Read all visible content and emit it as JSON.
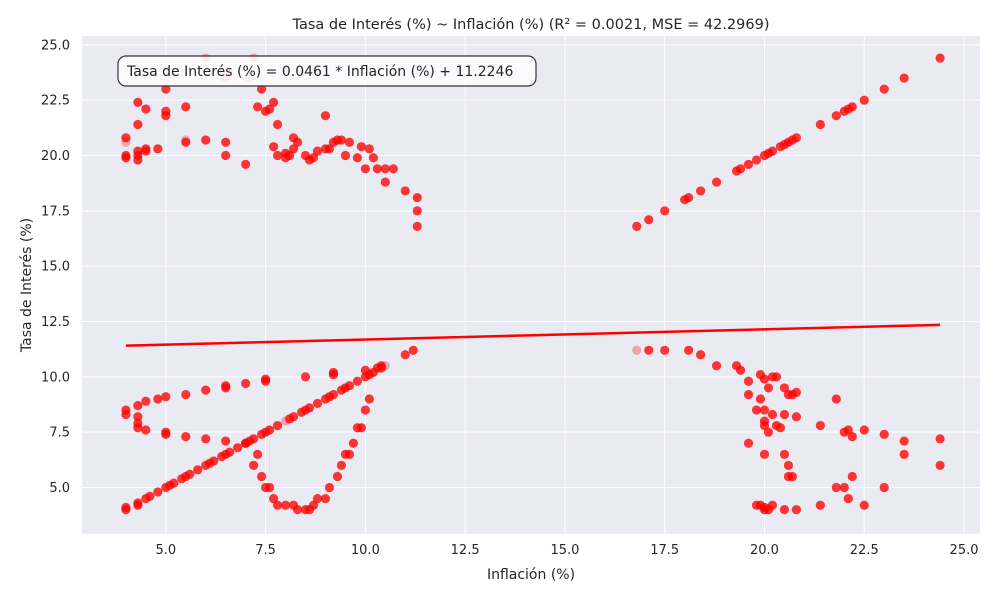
{
  "chart_data": {
    "type": "scatter",
    "title": "Tasa de Interés (%) ~ Inflación (%) (R² = 0.0021, MSE = 42.2969)",
    "xlabel": "Inflación (%)",
    "ylabel": "Tasa de Interés (%)",
    "xlim": [
      2.9,
      25.4
    ],
    "ylim": [
      2.9,
      25.4
    ],
    "xticks": [
      5.0,
      7.5,
      10.0,
      12.5,
      15.0,
      17.5,
      20.0,
      22.5,
      25.0
    ],
    "yticks": [
      5.0,
      7.5,
      10.0,
      12.5,
      15.0,
      17.5,
      20.0,
      22.5,
      25.0
    ],
    "xtick_labels": [
      "5.0",
      "7.5",
      "10.0",
      "12.5",
      "15.0",
      "17.5",
      "20.0",
      "22.5",
      "25.0"
    ],
    "ytick_labels": [
      "5.0",
      "7.5",
      "10.0",
      "12.5",
      "15.0",
      "17.5",
      "20.0",
      "22.5",
      "25.0"
    ],
    "grid": true,
    "regression": {
      "equation": "Tasa de Interés (%) = 0.0461 * Inflación (%) + 11.2246",
      "slope": 0.0461,
      "intercept": 11.2246,
      "x_range": [
        4.0,
        24.4
      ],
      "color": "#ff0000"
    },
    "point_color": "#ff0000",
    "background_color": "#eaeaf2",
    "points": [
      [
        4.0,
        4.0
      ],
      [
        4.0,
        4.1
      ],
      [
        4.3,
        4.2
      ],
      [
        4.3,
        4.3
      ],
      [
        4.5,
        4.5
      ],
      [
        4.6,
        4.6
      ],
      [
        4.8,
        4.8
      ],
      [
        5.0,
        5.0
      ],
      [
        5.1,
        5.1
      ],
      [
        5.2,
        5.2
      ],
      [
        5.4,
        5.4
      ],
      [
        5.5,
        5.5
      ],
      [
        5.6,
        5.6
      ],
      [
        5.8,
        5.8
      ],
      [
        6.0,
        6.0
      ],
      [
        6.1,
        6.1
      ],
      [
        6.2,
        6.2
      ],
      [
        6.4,
        6.4
      ],
      [
        6.5,
        6.5
      ],
      [
        6.6,
        6.6
      ],
      [
        6.8,
        6.8
      ],
      [
        7.0,
        7.0
      ],
      [
        7.1,
        7.1
      ],
      [
        7.2,
        7.2
      ],
      [
        7.4,
        7.4
      ],
      [
        7.5,
        7.5
      ],
      [
        7.6,
        7.6
      ],
      [
        7.8,
        7.8
      ],
      [
        8.0,
        8.0
      ],
      [
        8.1,
        8.1
      ],
      [
        8.2,
        8.2
      ],
      [
        8.4,
        8.4
      ],
      [
        8.5,
        8.5
      ],
      [
        8.6,
        8.6
      ],
      [
        8.8,
        8.8
      ],
      [
        9.0,
        9.0
      ],
      [
        9.1,
        9.1
      ],
      [
        9.2,
        9.2
      ],
      [
        9.4,
        9.4
      ],
      [
        9.5,
        9.5
      ],
      [
        9.6,
        9.6
      ],
      [
        9.8,
        9.8
      ],
      [
        10.0,
        10.0
      ],
      [
        10.1,
        10.1
      ],
      [
        10.2,
        10.2
      ],
      [
        10.4,
        10.4
      ],
      [
        10.5,
        10.5
      ],
      [
        11.0,
        11.0
      ],
      [
        11.2,
        11.2
      ],
      [
        4.0,
        8.3
      ],
      [
        4.0,
        8.5
      ],
      [
        4.3,
        8.7
      ],
      [
        4.5,
        8.9
      ],
      [
        4.8,
        9.0
      ],
      [
        5.0,
        9.1
      ],
      [
        5.5,
        9.2
      ],
      [
        6.0,
        9.4
      ],
      [
        6.5,
        9.5
      ],
      [
        6.5,
        9.6
      ],
      [
        7.0,
        9.7
      ],
      [
        7.5,
        9.8
      ],
      [
        7.5,
        9.9
      ],
      [
        8.5,
        10.0
      ],
      [
        9.2,
        10.1
      ],
      [
        9.2,
        10.2
      ],
      [
        10.0,
        10.3
      ],
      [
        10.3,
        10.4
      ],
      [
        10.4,
        10.5
      ],
      [
        4.3,
        7.7
      ],
      [
        4.3,
        7.9
      ],
      [
        4.3,
        8.2
      ],
      [
        4.5,
        7.6
      ],
      [
        5.0,
        7.5
      ],
      [
        5.0,
        7.4
      ],
      [
        5.5,
        7.3
      ],
      [
        6.0,
        7.2
      ],
      [
        6.5,
        7.1
      ],
      [
        7.0,
        7.0
      ],
      [
        7.3,
        6.5
      ],
      [
        7.2,
        6.0
      ],
      [
        7.4,
        5.5
      ],
      [
        7.5,
        5.0
      ],
      [
        7.6,
        5.0
      ],
      [
        7.7,
        4.5
      ],
      [
        7.8,
        4.2
      ],
      [
        8.0,
        4.2
      ],
      [
        8.2,
        4.2
      ],
      [
        8.3,
        4.0
      ],
      [
        8.5,
        4.0
      ],
      [
        8.6,
        4.0
      ],
      [
        8.7,
        4.2
      ],
      [
        8.8,
        4.5
      ],
      [
        9.0,
        4.5
      ],
      [
        9.1,
        5.0
      ],
      [
        9.3,
        5.5
      ],
      [
        9.4,
        6.0
      ],
      [
        9.5,
        6.5
      ],
      [
        9.6,
        6.5
      ],
      [
        9.7,
        7.0
      ],
      [
        9.8,
        7.7
      ],
      [
        9.9,
        7.7
      ],
      [
        10.0,
        8.5
      ],
      [
        10.1,
        9.0
      ],
      [
        4.0,
        19.9
      ],
      [
        4.0,
        20.0
      ],
      [
        4.0,
        20.6
      ],
      [
        4.0,
        20.8
      ],
      [
        4.3,
        19.8
      ],
      [
        4.3,
        20.0
      ],
      [
        4.3,
        20.2
      ],
      [
        4.5,
        20.2
      ],
      [
        4.5,
        20.3
      ],
      [
        4.8,
        20.3
      ],
      [
        5.0,
        21.8
      ],
      [
        5.0,
        22.0
      ],
      [
        5.0,
        23.0
      ],
      [
        4.3,
        21.4
      ],
      [
        4.3,
        22.4
      ],
      [
        4.5,
        22.1
      ],
      [
        5.5,
        22.2
      ],
      [
        5.5,
        20.6
      ],
      [
        5.5,
        20.7
      ],
      [
        6.0,
        20.7
      ],
      [
        6.5,
        20.6
      ],
      [
        6.5,
        20.0
      ],
      [
        7.0,
        19.6
      ],
      [
        6.0,
        24.4
      ],
      [
        6.5,
        23.5
      ],
      [
        7.1,
        23.5
      ],
      [
        7.2,
        24.4
      ],
      [
        7.3,
        22.2
      ],
      [
        7.4,
        23.0
      ],
      [
        7.5,
        22.0
      ],
      [
        7.6,
        22.1
      ],
      [
        7.7,
        22.4
      ],
      [
        7.8,
        21.4
      ],
      [
        7.7,
        20.4
      ],
      [
        7.8,
        20.0
      ],
      [
        8.0,
        20.1
      ],
      [
        8.0,
        19.9
      ],
      [
        8.1,
        20.0
      ],
      [
        8.2,
        20.3
      ],
      [
        8.2,
        20.8
      ],
      [
        8.3,
        20.6
      ],
      [
        8.5,
        20.0
      ],
      [
        8.6,
        19.8
      ],
      [
        8.7,
        19.9
      ],
      [
        8.8,
        20.2
      ],
      [
        9.0,
        20.3
      ],
      [
        9.0,
        21.8
      ],
      [
        9.1,
        20.3
      ],
      [
        9.2,
        20.6
      ],
      [
        9.3,
        20.7
      ],
      [
        9.4,
        20.7
      ],
      [
        9.5,
        20.0
      ],
      [
        9.6,
        20.6
      ],
      [
        9.8,
        19.9
      ],
      [
        9.9,
        20.4
      ],
      [
        10.0,
        19.4
      ],
      [
        10.1,
        20.3
      ],
      [
        10.2,
        19.9
      ],
      [
        10.3,
        19.4
      ],
      [
        10.5,
        19.4
      ],
      [
        10.5,
        18.8
      ],
      [
        10.7,
        19.4
      ],
      [
        11.0,
        18.4
      ],
      [
        11.3,
        18.1
      ],
      [
        11.3,
        17.5
      ],
      [
        11.3,
        16.8
      ],
      [
        16.8,
        16.8
      ],
      [
        17.1,
        17.1
      ],
      [
        17.5,
        17.5
      ],
      [
        18.0,
        18.0
      ],
      [
        18.1,
        18.1
      ],
      [
        18.4,
        18.4
      ],
      [
        18.8,
        18.8
      ],
      [
        19.3,
        19.3
      ],
      [
        19.4,
        19.4
      ],
      [
        19.6,
        19.6
      ],
      [
        19.8,
        19.8
      ],
      [
        20.0,
        20.0
      ],
      [
        20.1,
        20.1
      ],
      [
        20.2,
        20.2
      ],
      [
        20.4,
        20.4
      ],
      [
        20.5,
        20.5
      ],
      [
        20.6,
        20.6
      ],
      [
        20.7,
        20.7
      ],
      [
        20.8,
        20.8
      ],
      [
        21.4,
        21.4
      ],
      [
        21.8,
        21.8
      ],
      [
        22.0,
        22.0
      ],
      [
        22.1,
        22.1
      ],
      [
        22.2,
        22.2
      ],
      [
        22.5,
        22.5
      ],
      [
        23.0,
        23.0
      ],
      [
        23.5,
        23.5
      ],
      [
        24.4,
        24.4
      ],
      [
        16.8,
        11.2
      ],
      [
        17.1,
        11.2
      ],
      [
        17.5,
        11.2
      ],
      [
        18.1,
        11.2
      ],
      [
        18.4,
        11.0
      ],
      [
        18.8,
        10.5
      ],
      [
        19.3,
        10.5
      ],
      [
        19.4,
        10.3
      ],
      [
        19.6,
        9.8
      ],
      [
        19.9,
        10.1
      ],
      [
        20.0,
        9.9
      ],
      [
        20.1,
        9.5
      ],
      [
        20.2,
        10.0
      ],
      [
        20.3,
        10.0
      ],
      [
        20.5,
        9.5
      ],
      [
        20.6,
        9.2
      ],
      [
        20.7,
        9.2
      ],
      [
        20.8,
        9.3
      ],
      [
        19.6,
        9.2
      ],
      [
        19.9,
        9.0
      ],
      [
        19.8,
        8.5
      ],
      [
        20.0,
        8.5
      ],
      [
        20.2,
        8.3
      ],
      [
        20.5,
        8.3
      ],
      [
        20.8,
        8.2
      ],
      [
        21.8,
        9.0
      ],
      [
        19.6,
        7.0
      ],
      [
        20.0,
        8.0
      ],
      [
        20.0,
        7.8
      ],
      [
        20.1,
        7.5
      ],
      [
        20.3,
        7.8
      ],
      [
        20.4,
        7.7
      ],
      [
        21.4,
        7.8
      ],
      [
        22.0,
        7.5
      ],
      [
        22.1,
        7.6
      ],
      [
        22.2,
        7.3
      ],
      [
        22.5,
        7.6
      ],
      [
        23.0,
        7.4
      ],
      [
        23.5,
        7.1
      ],
      [
        24.4,
        7.2
      ],
      [
        20.0,
        6.5
      ],
      [
        20.5,
        6.5
      ],
      [
        20.6,
        6.0
      ],
      [
        20.6,
        5.5
      ],
      [
        20.7,
        5.5
      ],
      [
        21.8,
        5.0
      ],
      [
        22.0,
        5.0
      ],
      [
        22.2,
        5.5
      ],
      [
        22.1,
        4.5
      ],
      [
        23.0,
        5.0
      ],
      [
        23.5,
        6.5
      ],
      [
        24.4,
        6.0
      ],
      [
        19.8,
        4.2
      ],
      [
        19.9,
        4.2
      ],
      [
        20.0,
        4.0
      ],
      [
        20.0,
        4.1
      ],
      [
        20.1,
        4.0
      ],
      [
        20.2,
        4.2
      ],
      [
        20.5,
        4.0
      ],
      [
        20.8,
        4.0
      ],
      [
        21.4,
        4.2
      ],
      [
        22.5,
        4.2
      ]
    ],
    "faded_points": [
      [
        6.0,
        24.4
      ],
      [
        6.5,
        23.5
      ],
      [
        7.1,
        23.5
      ],
      [
        7.2,
        24.4
      ],
      [
        4.0,
        20.6
      ],
      [
        5.5,
        20.7
      ],
      [
        16.8,
        11.2
      ],
      [
        10.5,
        10.5
      ],
      [
        8.0,
        8.0
      ]
    ]
  }
}
